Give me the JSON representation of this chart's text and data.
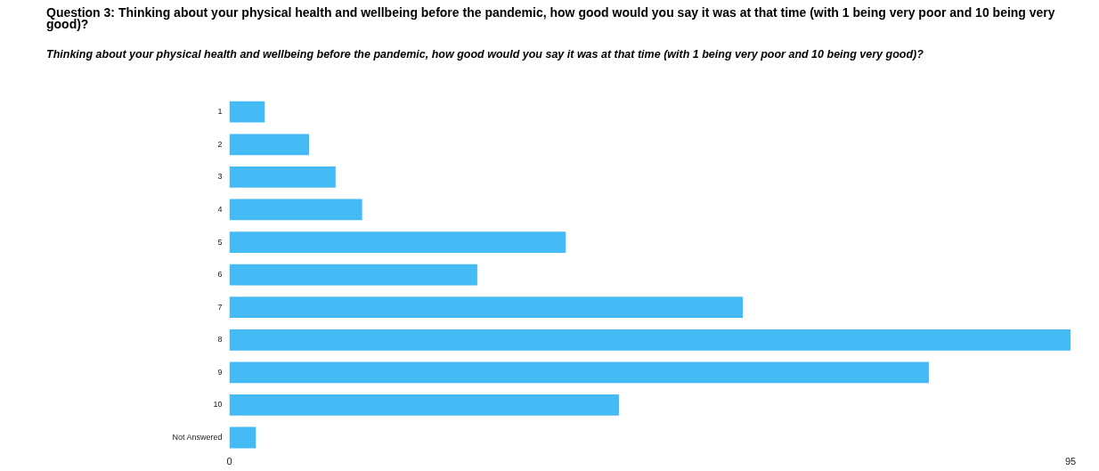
{
  "chart_data": {
    "type": "bar",
    "orientation": "horizontal",
    "title": "Question 3: Thinking about your physical health and wellbeing before the pandemic, how good would you say it was at that time (with 1 being very poor and 10 being very good)?",
    "subtitle": "Thinking about your physical health and wellbeing before the pandemic, how good would you say it was at that time (with 1 being very poor and 10 being very good)?",
    "categories": [
      "1",
      "2",
      "3",
      "4",
      "5",
      "6",
      "7",
      "8",
      "9",
      "10",
      "Not Answered"
    ],
    "values": [
      4,
      9,
      12,
      15,
      38,
      28,
      58,
      95,
      79,
      44,
      3
    ],
    "color": "#44bbf5",
    "xlim": [
      0,
      95
    ],
    "xticks": [
      0,
      95
    ],
    "grid": false,
    "legend": false
  }
}
